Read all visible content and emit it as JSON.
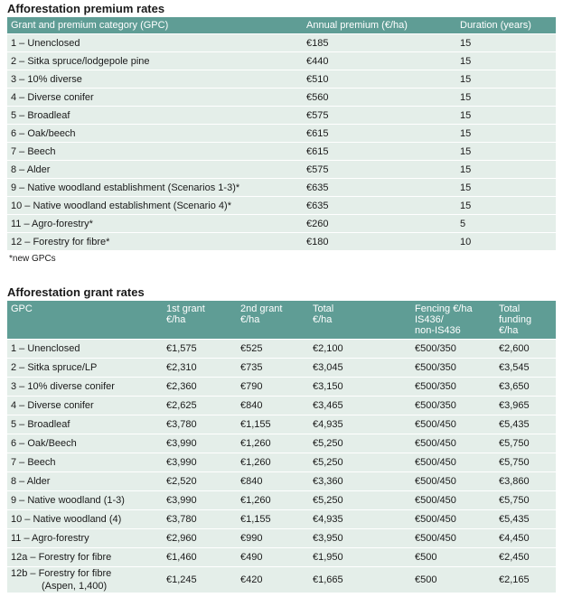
{
  "premium_table": {
    "title": "Afforestation premium rates",
    "headers": [
      "Grant and premium category (GPC)",
      "Annual premium (€/ha)",
      "Duration (years)"
    ],
    "rows": [
      [
        "1 – Unenclosed",
        "€185",
        "15"
      ],
      [
        "2 – Sitka spruce/lodgepole pine",
        "€440",
        "15"
      ],
      [
        "3 – 10% diverse",
        "€510",
        "15"
      ],
      [
        "4 – Diverse conifer",
        "€560",
        "15"
      ],
      [
        "5 – Broadleaf",
        "€575",
        "15"
      ],
      [
        "6 – Oak/beech",
        "€615",
        "15"
      ],
      [
        "7 – Beech",
        "€615",
        "15"
      ],
      [
        "8 – Alder",
        "€575",
        "15"
      ],
      [
        "9 – Native woodland establishment (Scenarios 1-3)*",
        "€635",
        "15"
      ],
      [
        "10 – Native woodland establishment (Scenario 4)*",
        "€635",
        "15"
      ],
      [
        "11 – Agro-forestry*",
        "€260",
        "5"
      ],
      [
        "12 – Forestry for fibre*",
        "€180",
        "10"
      ]
    ],
    "footnote": "*new GPCs"
  },
  "grant_table": {
    "title": "Afforestation grant rates",
    "headers": [
      "GPC",
      "1st grant\n€/ha",
      "2nd grant\n€/ha",
      "Total\n€/ha",
      "Fencing €/ha\nIS436/\nnon-IS436",
      "Total\nfunding\n€/ha"
    ],
    "rows": [
      [
        "1 – Unenclosed",
        "€1,575",
        "€525",
        "€2,100",
        "€500/350",
        "€2,600"
      ],
      [
        "2 – Sitka spruce/LP",
        "€2,310",
        "€735",
        "€3,045",
        "€500/350",
        "€3,545"
      ],
      [
        "3 – 10% diverse conifer",
        "€2,360",
        "€790",
        "€3,150",
        "€500/350",
        "€3,650"
      ],
      [
        "4 – Diverse conifer",
        "€2,625",
        "€840",
        "€3,465",
        "€500/350",
        "€3,965"
      ],
      [
        "5 – Broadleaf",
        "€3,780",
        "€1,155",
        "€4,935",
        "€500/450",
        "€5,435"
      ],
      [
        "6 – Oak/Beech",
        "€3,990",
        "€1,260",
        "€5,250",
        "€500/450",
        "€5,750"
      ],
      [
        "7 – Beech",
        "€3,990",
        "€1,260",
        "€5,250",
        "€500/450",
        "€5,750"
      ],
      [
        "8 – Alder",
        "€2,520",
        "€840",
        "€3,360",
        "€500/450",
        "€3,860"
      ],
      [
        "9 – Native woodland (1-3)",
        "€3,990",
        "€1,260",
        "€5,250",
        "€500/450",
        "€5,750"
      ],
      [
        "10 – Native woodland (4)",
        "€3,780",
        "€1,155",
        "€4,935",
        "€500/450",
        "€5,435"
      ],
      [
        "11 – Agro-forestry",
        "€2,960",
        "€990",
        "€3,950",
        "€500/450",
        "€4,450"
      ],
      [
        "12a – Forestry for fibre",
        "€1,460",
        "€490",
        "€1,950",
        "€500",
        "€2,450"
      ],
      [
        "12b – Forestry for fibre\n(Aspen, 1,400)",
        "€1,245",
        "€420",
        "€1,665",
        "€500",
        "€2,165"
      ]
    ]
  }
}
